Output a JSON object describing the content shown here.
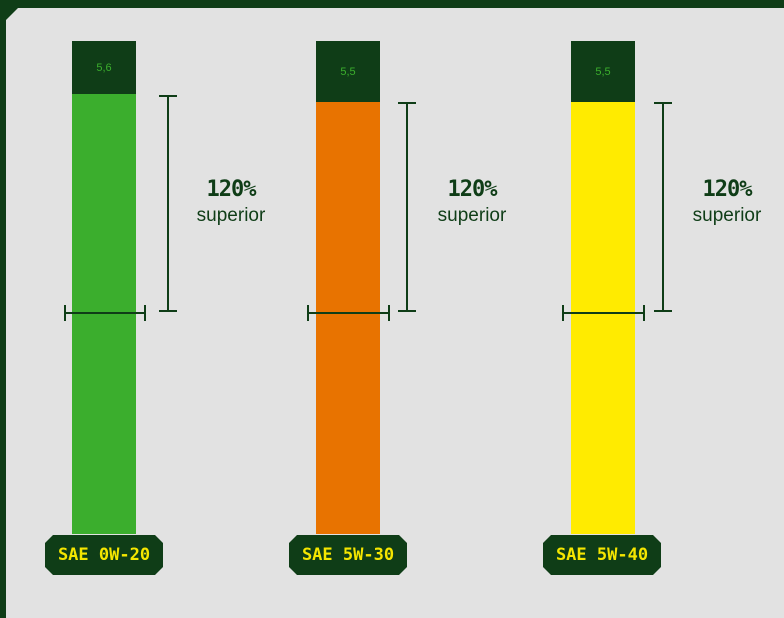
{
  "chart_data": {
    "type": "bar",
    "categories": [
      "SAE 0W-20",
      "SAE 5W-30",
      "SAE 5W-40"
    ],
    "series": [
      {
        "values": [
          5.6,
          5.5,
          5.5
        ]
      }
    ],
    "top_labels": [
      "5,6",
      "5,5",
      "5,5"
    ],
    "annotations": [
      {
        "percent": "120%",
        "text": "superior"
      },
      {
        "percent": "120%",
        "text": "superior"
      },
      {
        "percent": "120%",
        "text": "superior"
      }
    ],
    "colors": [
      "#3bae2d",
      "#e87300",
      "#ffeb00"
    ],
    "top_color": "#0f3d17",
    "top_text_colors": [
      "#3bae2d",
      "#3bae2d",
      "#c8b800"
    ]
  }
}
